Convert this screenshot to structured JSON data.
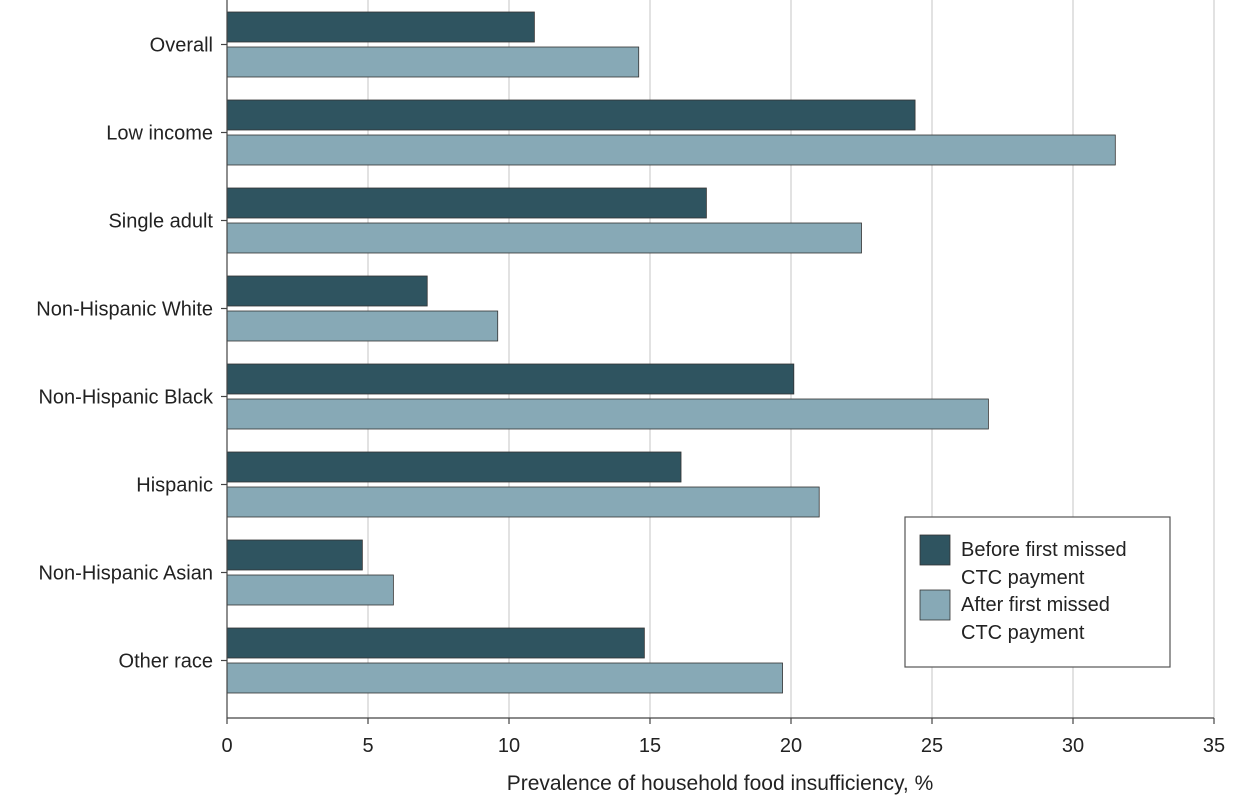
{
  "chart_data": {
    "type": "bar",
    "orientation": "horizontal",
    "title": "",
    "xlabel": "Prevalence of household food insufficiency, %",
    "ylabel": "",
    "xlim": [
      0,
      35
    ],
    "x_ticks": [
      0,
      5,
      10,
      15,
      20,
      25,
      30,
      35
    ],
    "grid": "vertical",
    "legend_position": "bottom-right",
    "categories": [
      "Overall",
      "Low income",
      "Single adult",
      "Non-Hispanic White",
      "Non-Hispanic Black",
      "Hispanic",
      "Non-Hispanic Asian",
      "Other race"
    ],
    "series": [
      {
        "legend_lines": [
          "Before first missed",
          "CTC payment"
        ],
        "color": "#2f5460",
        "values": [
          10.9,
          24.4,
          17.0,
          7.1,
          20.1,
          16.1,
          4.8,
          14.8
        ]
      },
      {
        "legend_lines": [
          "After first missed",
          "CTC payment"
        ],
        "color": "#87a9b6",
        "values": [
          14.6,
          31.5,
          22.5,
          9.6,
          27.0,
          21.0,
          5.9,
          19.7
        ]
      }
    ]
  }
}
